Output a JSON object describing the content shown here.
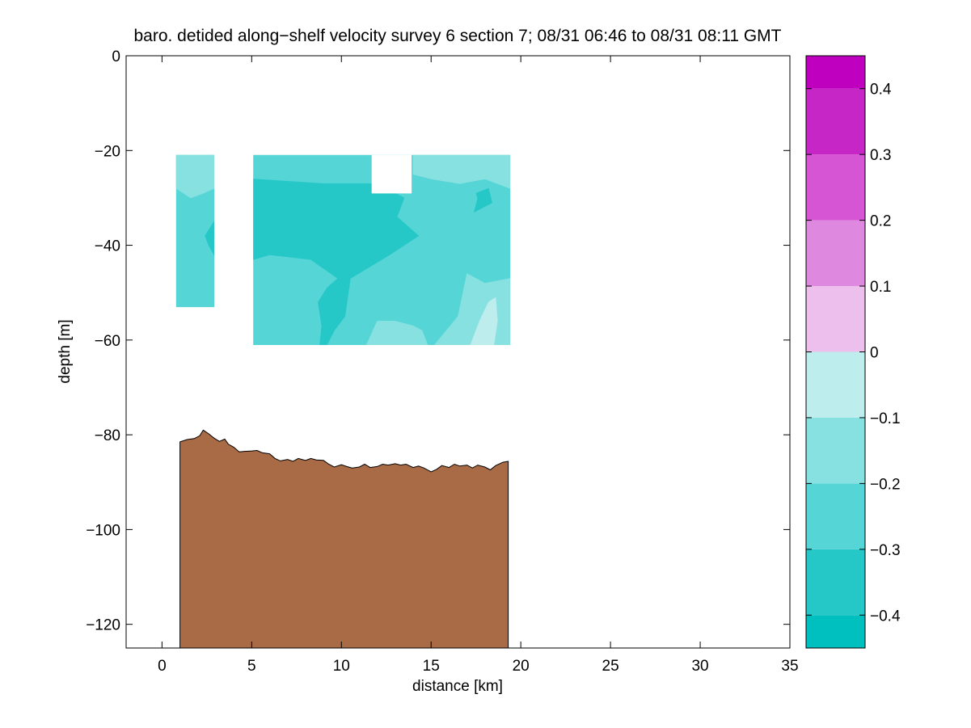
{
  "chart_data": {
    "type": "heatmap",
    "title": "baro. detided along−shelf velocity survey 6 section 7; 08/31 06:46 to 08/31 08:11 GMT",
    "xlabel": "distance [km]",
    "ylabel": "depth [m]",
    "xlim": [
      -2,
      35
    ],
    "ylim": [
      -125,
      0
    ],
    "grid": false,
    "x_ticks": [
      0,
      5,
      10,
      15,
      20,
      25,
      30,
      35
    ],
    "x_tick_labels": [
      "0",
      "5",
      "10",
      "15",
      "20",
      "25",
      "30",
      "35"
    ],
    "y_ticks": [
      0,
      -20,
      -40,
      -60,
      -80,
      -100,
      -120
    ],
    "y_tick_labels": [
      "0",
      "−20",
      "−40",
      "−60",
      "−80",
      "−100",
      "−120"
    ],
    "colorbar": {
      "clim": [
        -0.45,
        0.45
      ],
      "levels": [
        -0.45,
        -0.4,
        -0.35,
        -0.3,
        -0.25,
        -0.2,
        -0.15,
        -0.1,
        -0.05,
        0.0,
        0.05,
        0.1,
        0.15,
        0.2,
        0.25,
        0.3,
        0.35,
        0.4,
        0.45
      ],
      "band_edges": [
        -0.45,
        -0.4,
        -0.3,
        -0.2,
        -0.1,
        0.0,
        0.1,
        0.2,
        0.3,
        0.4,
        0.45
      ],
      "band_colors": [
        "#00bfbf",
        "#26c7c7",
        "#55d5d5",
        "#88e1e1",
        "#bdeded",
        "#ecbfec",
        "#df88df",
        "#d555d5",
        "#c726c7",
        "#bf00bf"
      ],
      "ticks": [
        -0.4,
        -0.3,
        -0.2,
        -0.1,
        0,
        0.1,
        0.2,
        0.3,
        0.4
      ],
      "tick_labels": [
        "−0.4",
        "−0.3",
        "−0.2",
        "−0.1",
        "0",
        "0.1",
        "0.2",
        "0.3",
        "0.4"
      ]
    },
    "velocity_regions": [
      {
        "value": -0.25,
        "polygon": [
          [
            0.8,
            -21
          ],
          [
            2.9,
            -21
          ],
          [
            2.9,
            -53
          ],
          [
            0.8,
            -53
          ]
        ]
      },
      {
        "value": -0.15,
        "polygon": [
          [
            0.8,
            -21
          ],
          [
            2.9,
            -21
          ],
          [
            2.9,
            -28
          ],
          [
            2.3,
            -29
          ],
          [
            1.6,
            -30
          ],
          [
            0.8,
            -28
          ]
        ]
      },
      {
        "value": -0.15,
        "polygon": [
          [
            0.8,
            -28
          ],
          [
            1.6,
            -30
          ],
          [
            2.3,
            -29
          ],
          [
            2.9,
            -28
          ],
          [
            2.9,
            -21
          ],
          [
            2.4,
            -21
          ],
          [
            2.0,
            -24
          ],
          [
            1.6,
            -23
          ],
          [
            1.3,
            -21
          ],
          [
            0.8,
            -21
          ]
        ]
      },
      {
        "value": -0.35,
        "polygon": [
          [
            2.4,
            -38
          ],
          [
            2.9,
            -35
          ],
          [
            2.9,
            -42
          ],
          [
            2.6,
            -40
          ]
        ]
      },
      {
        "value": -0.25,
        "polygon": [
          [
            5.1,
            -21
          ],
          [
            19.4,
            -21
          ],
          [
            19.4,
            -61
          ],
          [
            5.1,
            -61
          ]
        ]
      },
      {
        "value": -0.35,
        "polygon": [
          [
            5.1,
            -26
          ],
          [
            9.0,
            -27
          ],
          [
            12.0,
            -27
          ],
          [
            13.5,
            -30
          ],
          [
            13.1,
            -34
          ],
          [
            14.3,
            -38
          ],
          [
            12.7,
            -42
          ],
          [
            10.5,
            -47
          ],
          [
            10.2,
            -55
          ],
          [
            9.6,
            -58
          ],
          [
            9.2,
            -61
          ],
          [
            8.8,
            -61
          ],
          [
            8.9,
            -57
          ],
          [
            8.7,
            -52
          ],
          [
            9.2,
            -49
          ],
          [
            9.8,
            -47
          ],
          [
            8.3,
            -43
          ],
          [
            6.0,
            -42
          ],
          [
            5.1,
            -43
          ]
        ]
      },
      {
        "value": -0.15,
        "polygon": [
          [
            14.0,
            -21
          ],
          [
            19.4,
            -21
          ],
          [
            19.4,
            -28
          ],
          [
            18.0,
            -26
          ],
          [
            16.6,
            -27
          ],
          [
            15.0,
            -26
          ],
          [
            14.0,
            -25
          ]
        ]
      },
      {
        "value": -0.15,
        "polygon": [
          [
            11.4,
            -61
          ],
          [
            12.0,
            -56
          ],
          [
            13.0,
            -56
          ],
          [
            14.0,
            -57
          ],
          [
            14.5,
            -58
          ],
          [
            14.8,
            -61
          ]
        ]
      },
      {
        "value": -0.15,
        "polygon": [
          [
            15.2,
            -61
          ],
          [
            16.5,
            -55
          ],
          [
            17.0,
            -46
          ],
          [
            18.0,
            -48
          ],
          [
            19.4,
            -47
          ],
          [
            19.4,
            -61
          ]
        ]
      },
      {
        "value": -0.05,
        "polygon": [
          [
            17.2,
            -61
          ],
          [
            17.7,
            -56
          ],
          [
            18.2,
            -52
          ],
          [
            18.6,
            -51
          ],
          [
            18.7,
            -56
          ],
          [
            18.5,
            -61
          ]
        ]
      },
      {
        "value": -0.35,
        "polygon": [
          [
            17.5,
            -29
          ],
          [
            18.2,
            -28
          ],
          [
            18.4,
            -31
          ],
          [
            17.4,
            -33
          ],
          [
            17.6,
            -30
          ]
        ]
      }
    ],
    "no_data_gaps": [
      {
        "polygon": [
          [
            11.7,
            -21
          ],
          [
            13.9,
            -21
          ],
          [
            13.9,
            -29
          ],
          [
            11.7,
            -29
          ]
        ]
      }
    ],
    "bathymetry": {
      "color": "#a96b46",
      "x": [
        1.0,
        1.4,
        1.8,
        2.1,
        2.3,
        2.6,
        2.9,
        3.2,
        3.5,
        3.7,
        4.0,
        4.3,
        4.6,
        5.0,
        5.3,
        5.6,
        6.0,
        6.3,
        6.6,
        7.0,
        7.3,
        7.6,
        8.0,
        8.3,
        8.6,
        9.0,
        9.3,
        9.6,
        10.0,
        10.3,
        10.6,
        11.0,
        11.3,
        11.6,
        12.0,
        12.3,
        12.6,
        13.0,
        13.3,
        13.6,
        14.0,
        14.3,
        14.6,
        15.0,
        15.3,
        15.6,
        16.0,
        16.3,
        16.6,
        17.0,
        17.3,
        17.6,
        18.0,
        18.3,
        18.6,
        19.0,
        19.3
      ],
      "y": [
        -81.5,
        -81.0,
        -80.8,
        -80.2,
        -79.0,
        -79.8,
        -80.7,
        -81.4,
        -80.9,
        -82.0,
        -82.6,
        -83.6,
        -83.5,
        -83.4,
        -83.3,
        -83.8,
        -84.0,
        -85.0,
        -85.5,
        -85.2,
        -85.6,
        -85.0,
        -85.4,
        -85.0,
        -85.3,
        -85.4,
        -86.2,
        -86.8,
        -86.3,
        -86.7,
        -87.0,
        -86.8,
        -86.2,
        -86.9,
        -86.7,
        -86.2,
        -86.4,
        -86.1,
        -86.4,
        -86.2,
        -86.9,
        -86.6,
        -87.0,
        -87.8,
        -87.3,
        -86.5,
        -86.9,
        -86.2,
        -86.6,
        -86.4,
        -87.0,
        -86.4,
        -86.8,
        -87.4,
        -86.5,
        -85.8,
        -85.6
      ]
    }
  }
}
